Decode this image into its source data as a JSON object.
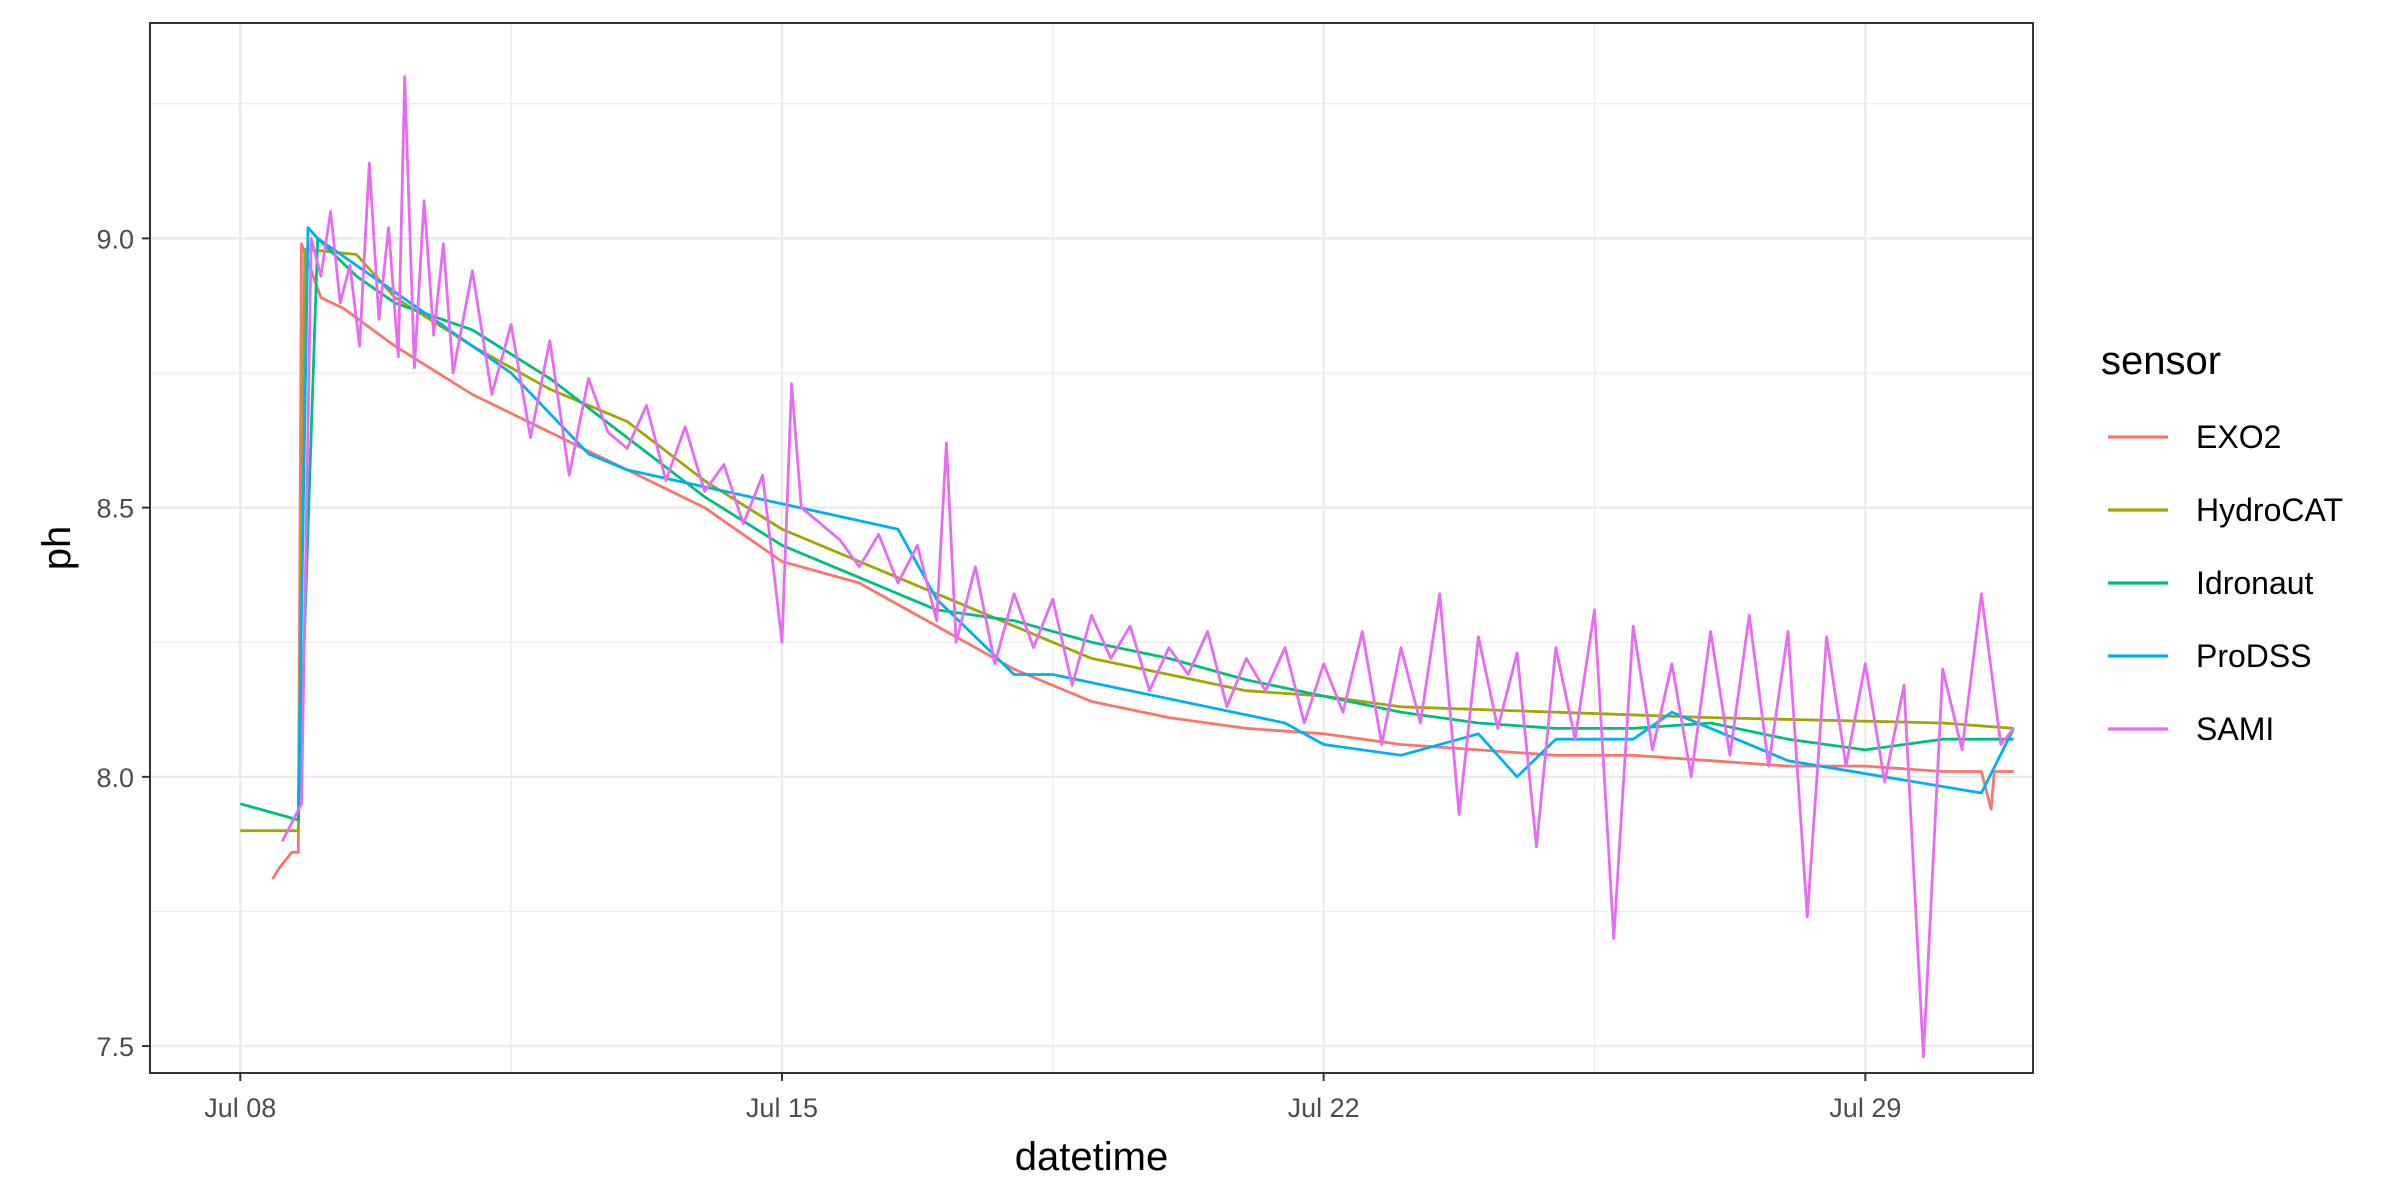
{
  "chart_data": {
    "type": "line",
    "xlabel": "datetime",
    "ylabel": "ph",
    "x_ticks": [
      "Jul 08",
      "Jul 15",
      "Jul 22",
      "Jul 29"
    ],
    "y_ticks": [
      "7.5",
      "8.0",
      "8.5",
      "9.0"
    ],
    "xlim": [
      "2023-07-06T20:00",
      "2023-07-31T04:00"
    ],
    "ylim": [
      7.45,
      9.4
    ],
    "grid": true,
    "legend": {
      "title": "sensor",
      "position": "right"
    },
    "series": [
      {
        "name": "EXO2",
        "color": "#F8766D",
        "x": [
          "2023-07-08T10:00",
          "2023-07-08T12:00",
          "2023-07-08T16:00",
          "2023-07-08T18:00",
          "2023-07-08T19:00",
          "2023-07-09T01:00",
          "2023-07-09T08:00",
          "2023-07-10T00:00",
          "2023-07-11T00:00",
          "2023-07-12T00:00",
          "2023-07-13T00:00",
          "2023-07-14T00:00",
          "2023-07-15T00:00",
          "2023-07-16T00:00",
          "2023-07-17T00:00",
          "2023-07-18T00:00",
          "2023-07-19T00:00",
          "2023-07-20T00:00",
          "2023-07-21T00:00",
          "2023-07-22T00:00",
          "2023-07-23T00:00",
          "2023-07-24T00:00",
          "2023-07-25T00:00",
          "2023-07-26T00:00",
          "2023-07-27T00:00",
          "2023-07-28T00:00",
          "2023-07-29T00:00",
          "2023-07-30T00:00",
          "2023-07-30T12:00",
          "2023-07-30T15:00",
          "2023-07-30T16:00",
          "2023-07-30T22:00"
        ],
        "y": [
          7.81,
          7.83,
          7.86,
          7.86,
          8.99,
          8.89,
          8.87,
          8.8,
          8.71,
          8.64,
          8.57,
          8.5,
          8.4,
          8.36,
          8.28,
          8.2,
          8.14,
          8.11,
          8.09,
          8.08,
          8.06,
          8.05,
          8.04,
          8.04,
          8.03,
          8.02,
          8.02,
          8.01,
          8.01,
          7.94,
          8.01,
          8.01
        ]
      },
      {
        "name": "HydroCAT",
        "color": "#A3A500",
        "x": [
          "2023-07-08T00:00",
          "2023-07-08T18:00",
          "2023-07-08T20:00",
          "2023-07-09T12:00",
          "2023-07-10T00:00",
          "2023-07-11T00:00",
          "2023-07-12T00:00",
          "2023-07-13T00:00",
          "2023-07-14T00:00",
          "2023-07-15T00:00",
          "2023-07-16T00:00",
          "2023-07-17T00:00",
          "2023-07-18T00:00",
          "2023-07-19T00:00",
          "2023-07-20T00:00",
          "2023-07-21T00:00",
          "2023-07-22T00:00",
          "2023-07-23T00:00",
          "2023-07-25T00:00",
          "2023-07-27T00:00",
          "2023-07-30T00:00",
          "2023-07-30T22:00"
        ],
        "y": [
          7.9,
          7.9,
          8.98,
          8.97,
          8.89,
          8.8,
          8.72,
          8.66,
          8.55,
          8.46,
          8.4,
          8.34,
          8.28,
          8.22,
          8.19,
          8.16,
          8.15,
          8.13,
          8.12,
          8.11,
          8.1,
          8.09
        ]
      },
      {
        "name": "Idronaut",
        "color": "#00BF7D",
        "x": [
          "2023-07-08T00:00",
          "2023-07-08T12:00",
          "2023-07-08T18:00",
          "2023-07-09T00:00",
          "2023-07-09T12:00",
          "2023-07-10T00:00",
          "2023-07-11T00:00",
          "2023-07-12T00:00",
          "2023-07-13T00:00",
          "2023-07-14T00:00",
          "2023-07-15T00:00",
          "2023-07-16T00:00",
          "2023-07-17T00:00",
          "2023-07-18T00:00",
          "2023-07-19T00:00",
          "2023-07-20T00:00",
          "2023-07-21T00:00",
          "2023-07-22T00:00",
          "2023-07-23T00:00",
          "2023-07-24T00:00",
          "2023-07-25T00:00",
          "2023-07-26T00:00",
          "2023-07-27T00:00",
          "2023-07-28T00:00",
          "2023-07-29T00:00",
          "2023-07-30T00:00",
          "2023-07-30T22:00"
        ],
        "y": [
          7.95,
          7.93,
          7.92,
          9.0,
          8.93,
          8.88,
          8.83,
          8.74,
          8.63,
          8.52,
          8.43,
          8.37,
          8.31,
          8.29,
          8.25,
          8.22,
          8.18,
          8.15,
          8.12,
          8.1,
          8.09,
          8.09,
          8.1,
          8.07,
          8.05,
          8.07,
          8.07
        ]
      },
      {
        "name": "ProDSS",
        "color": "#00B0F6",
        "x": [
          "2023-07-08T18:00",
          "2023-07-08T21:00",
          "2023-07-09T00:00",
          "2023-07-11T12:00",
          "2023-07-12T12:00",
          "2023-07-13T00:00",
          "2023-07-16T12:00",
          "2023-07-17T00:00",
          "2023-07-18T00:00",
          "2023-07-18T12:00",
          "2023-07-19T12:00",
          "2023-07-21T12:00",
          "2023-07-22T00:00",
          "2023-07-23T00:00",
          "2023-07-24T00:00",
          "2023-07-24T12:00",
          "2023-07-25T00:00",
          "2023-07-26T00:00",
          "2023-07-26T12:00",
          "2023-07-28T00:00",
          "2023-07-30T12:00",
          "2023-07-30T22:00"
        ],
        "y": [
          7.94,
          9.02,
          9.0,
          8.75,
          8.6,
          8.57,
          8.46,
          8.33,
          8.19,
          8.19,
          8.16,
          8.1,
          8.06,
          8.04,
          8.08,
          8.0,
          8.07,
          8.07,
          8.12,
          8.03,
          7.97,
          8.09
        ]
      },
      {
        "name": "SAMI",
        "color": "#E76BF3",
        "x": [
          "2023-07-08T13:00",
          "2023-07-08T19:00",
          "2023-07-08T22:00",
          "2023-07-09T01:00",
          "2023-07-09T04:00",
          "2023-07-09T07:00",
          "2023-07-09T10:00",
          "2023-07-09T13:00",
          "2023-07-09T16:00",
          "2023-07-09T19:00",
          "2023-07-09T22:00",
          "2023-07-10T01:00",
          "2023-07-10T03:00",
          "2023-07-10T06:00",
          "2023-07-10T09:00",
          "2023-07-10T12:00",
          "2023-07-10T15:00",
          "2023-07-10T18:00",
          "2023-07-11T00:00",
          "2023-07-11T06:00",
          "2023-07-11T12:00",
          "2023-07-11T18:00",
          "2023-07-12T00:00",
          "2023-07-12T06:00",
          "2023-07-12T12:00",
          "2023-07-12T18:00",
          "2023-07-13T00:00",
          "2023-07-13T06:00",
          "2023-07-13T12:00",
          "2023-07-13T18:00",
          "2023-07-14T00:00",
          "2023-07-14T06:00",
          "2023-07-14T12:00",
          "2023-07-14T18:00",
          "2023-07-15T00:00",
          "2023-07-15T03:00",
          "2023-07-15T06:00",
          "2023-07-15T12:00",
          "2023-07-15T18:00",
          "2023-07-16T00:00",
          "2023-07-16T06:00",
          "2023-07-16T12:00",
          "2023-07-16T18:00",
          "2023-07-17T00:00",
          "2023-07-17T03:00",
          "2023-07-17T06:00",
          "2023-07-17T12:00",
          "2023-07-17T18:00",
          "2023-07-18T00:00",
          "2023-07-18T06:00",
          "2023-07-18T12:00",
          "2023-07-18T18:00",
          "2023-07-19T00:00",
          "2023-07-19T06:00",
          "2023-07-19T12:00",
          "2023-07-19T18:00",
          "2023-07-20T00:00",
          "2023-07-20T06:00",
          "2023-07-20T12:00",
          "2023-07-20T18:00",
          "2023-07-21T00:00",
          "2023-07-21T06:00",
          "2023-07-21T12:00",
          "2023-07-21T18:00",
          "2023-07-22T00:00",
          "2023-07-22T06:00",
          "2023-07-22T12:00",
          "2023-07-22T18:00",
          "2023-07-23T00:00",
          "2023-07-23T06:00",
          "2023-07-23T12:00",
          "2023-07-23T18:00",
          "2023-07-24T00:00",
          "2023-07-24T06:00",
          "2023-07-24T12:00",
          "2023-07-24T18:00",
          "2023-07-25T00:00",
          "2023-07-25T06:00",
          "2023-07-25T12:00",
          "2023-07-25T18:00",
          "2023-07-26T00:00",
          "2023-07-26T06:00",
          "2023-07-26T12:00",
          "2023-07-26T18:00",
          "2023-07-27T00:00",
          "2023-07-27T06:00",
          "2023-07-27T12:00",
          "2023-07-27T18:00",
          "2023-07-28T00:00",
          "2023-07-28T06:00",
          "2023-07-28T12:00",
          "2023-07-28T18:00",
          "2023-07-29T00:00",
          "2023-07-29T06:00",
          "2023-07-29T12:00",
          "2023-07-29T18:00",
          "2023-07-30T00:00",
          "2023-07-30T06:00",
          "2023-07-30T12:00",
          "2023-07-30T18:00",
          "2023-07-30T22:00"
        ],
        "y": [
          7.88,
          7.95,
          9.0,
          8.93,
          9.05,
          8.88,
          8.95,
          8.8,
          9.14,
          8.85,
          9.02,
          8.78,
          9.3,
          8.76,
          9.07,
          8.82,
          8.99,
          8.75,
          8.94,
          8.71,
          8.84,
          8.63,
          8.81,
          8.56,
          8.74,
          8.64,
          8.61,
          8.69,
          8.55,
          8.65,
          8.53,
          8.58,
          8.47,
          8.56,
          8.25,
          8.73,
          8.5,
          8.47,
          8.44,
          8.39,
          8.45,
          8.36,
          8.43,
          8.29,
          8.62,
          8.25,
          8.39,
          8.21,
          8.34,
          8.24,
          8.33,
          8.17,
          8.3,
          8.22,
          8.28,
          8.16,
          8.24,
          8.19,
          8.27,
          8.13,
          8.22,
          8.16,
          8.24,
          8.1,
          8.21,
          8.12,
          8.27,
          8.06,
          8.24,
          8.1,
          8.34,
          7.93,
          8.26,
          8.09,
          8.23,
          7.87,
          8.24,
          8.07,
          8.31,
          7.7,
          8.28,
          8.05,
          8.21,
          8.0,
          8.27,
          8.04,
          8.3,
          8.02,
          8.27,
          7.74,
          8.26,
          8.02,
          8.21,
          7.99,
          8.17,
          7.48,
          8.2,
          8.05,
          8.34,
          8.06,
          8.09
        ]
      }
    ]
  }
}
